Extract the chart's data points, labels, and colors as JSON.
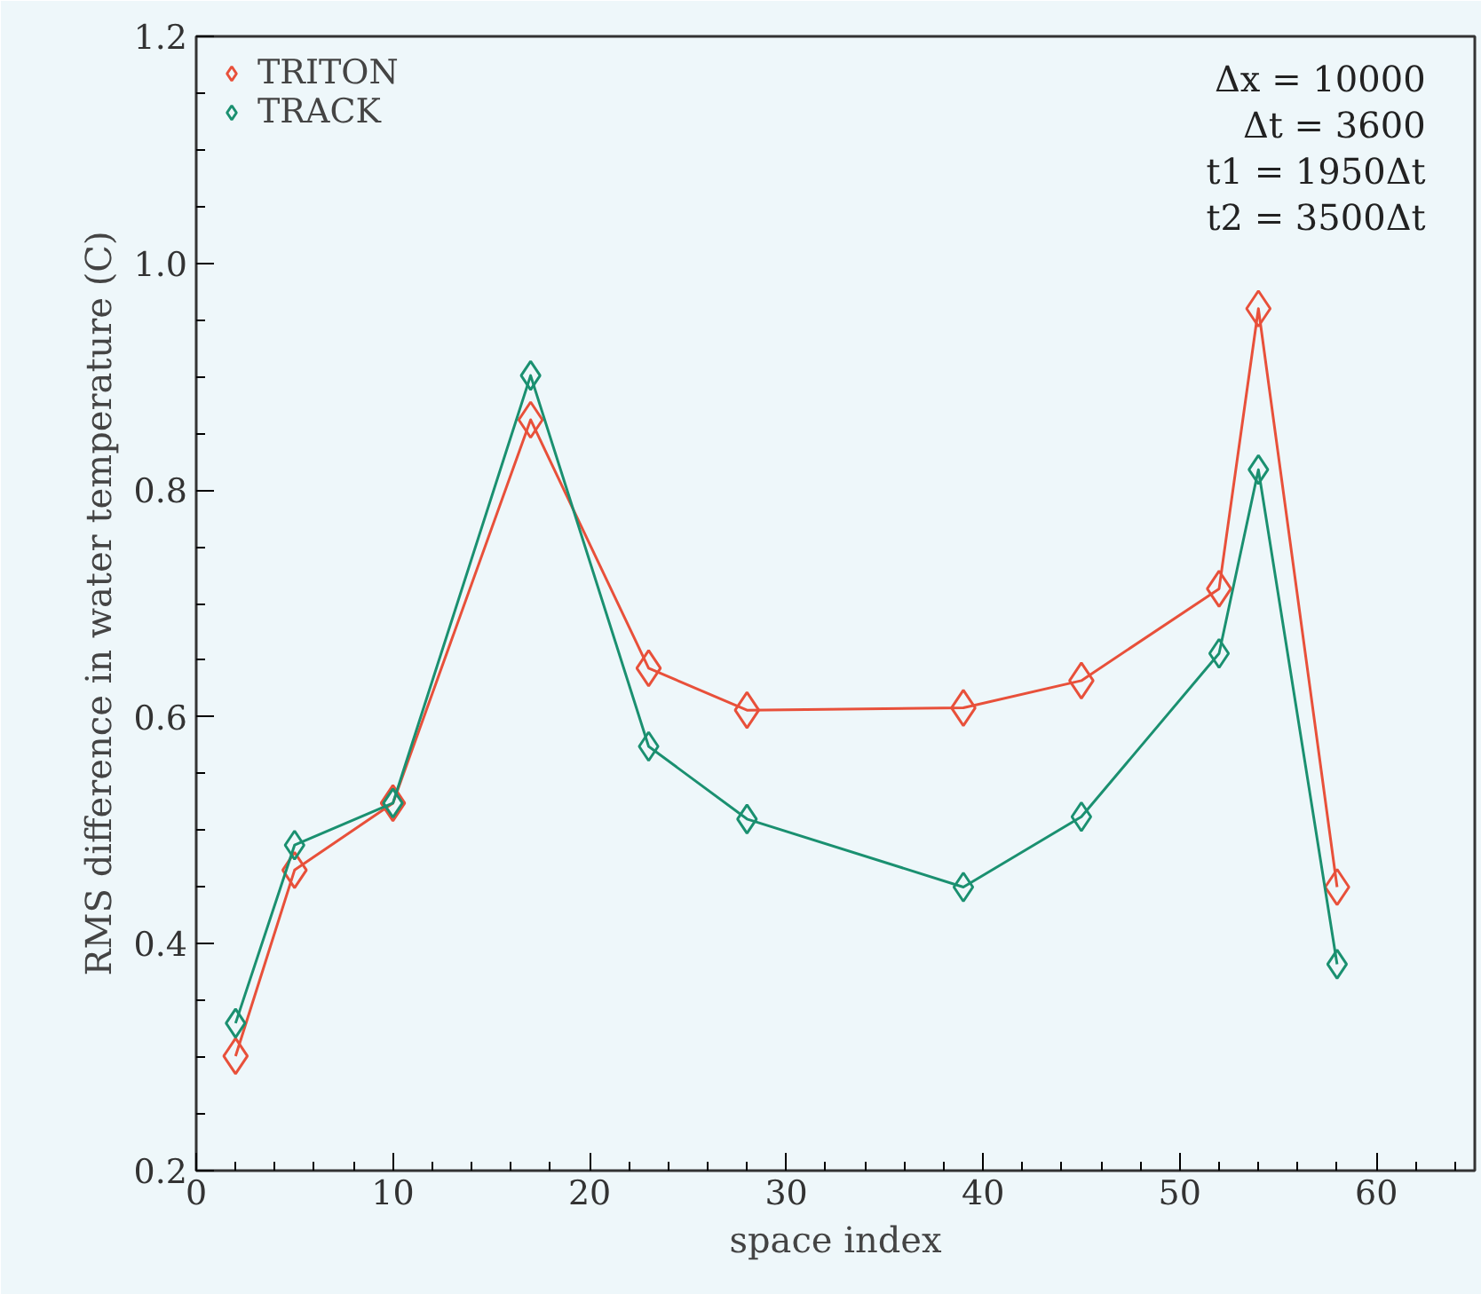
{
  "chart_data": {
    "type": "line",
    "xlabel": "space index",
    "ylabel": "RMS difference in water temperature (C)",
    "x": [
      2,
      5,
      10,
      17,
      23,
      28,
      39,
      45,
      52,
      54,
      58
    ],
    "series": [
      {
        "name": "TRITON",
        "color": "#e8503a",
        "values": [
          0.301,
          0.465,
          0.524,
          0.862,
          0.643,
          0.606,
          0.608,
          0.632,
          0.713,
          0.96,
          0.45
        ]
      },
      {
        "name": "TRACK",
        "color": "#1a9070",
        "values": [
          0.33,
          0.487,
          0.524,
          0.901,
          0.574,
          0.51,
          0.45,
          0.512,
          0.656,
          0.818,
          0.382
        ]
      }
    ],
    "xlim": [
      0,
      65
    ],
    "ylim": [
      0.2,
      1.2
    ],
    "xticks": [
      0,
      10,
      20,
      30,
      40,
      50,
      60
    ],
    "yticks": [
      {
        "value": 0.2,
        "label": "0.2"
      },
      {
        "value": 0.4,
        "label": "0.4"
      },
      {
        "value": 0.6,
        "label": "0.6"
      },
      {
        "value": 0.8,
        "label": "0.8"
      },
      {
        "value": 1.0,
        "label": "1.0"
      },
      {
        "value": 1.2,
        "label": "1.2"
      }
    ],
    "annotations": [
      "Δx = 10000",
      "Δt = 3600",
      "t1 = 1950Δt",
      "t2 = 3500Δt"
    ],
    "legend": "top left",
    "marker": "diamond",
    "line_style": "solid",
    "grid": false
  }
}
